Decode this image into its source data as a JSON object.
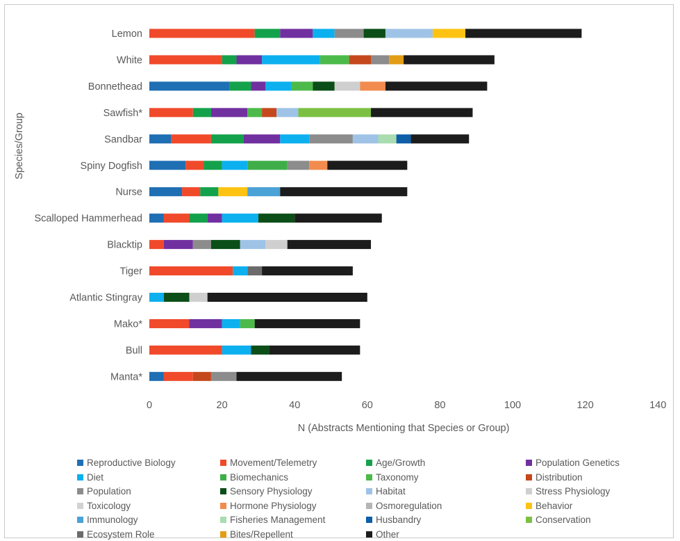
{
  "chart_data": {
    "type": "bar",
    "orientation": "horizontal",
    "stacked": true,
    "xlabel": "N (Abstracts Mentioning that Species or Group)",
    "ylabel": "Species/Group",
    "xlim": [
      0,
      140
    ],
    "xticks": [
      0,
      20,
      40,
      60,
      80,
      100,
      120,
      140
    ],
    "grid": false,
    "legend_position": "bottom",
    "categories": [
      "Lemon",
      "White",
      "Bonnethead",
      "Sawfish*",
      "Sandbar",
      "Spiny Dogfish",
      "Nurse",
      "Scalloped Hammerhead",
      "Blacktip",
      "Tiger",
      "Atlantic Stingray",
      "Mako*",
      "Bull",
      "Manta*"
    ],
    "series": [
      {
        "name": "Reproductive Biology",
        "color": "#1f6fb4",
        "values": [
          0,
          0,
          22,
          0,
          6,
          10,
          9,
          4,
          0,
          0,
          0,
          0,
          0,
          4
        ]
      },
      {
        "name": "Movement/Telemetry",
        "color": "#f04a2b",
        "values": [
          29,
          20,
          0,
          12,
          11,
          5,
          5,
          7,
          4,
          23,
          0,
          11,
          20,
          8
        ]
      },
      {
        "name": "Age/Growth",
        "color": "#13a24b",
        "values": [
          7,
          4,
          6,
          5,
          9,
          5,
          5,
          5,
          0,
          0,
          0,
          0,
          0,
          0
        ]
      },
      {
        "name": "Population Genetics",
        "color": "#7130a0",
        "values": [
          9,
          7,
          4,
          10,
          10,
          0,
          0,
          4,
          8,
          0,
          0,
          9,
          0,
          0
        ]
      },
      {
        "name": "Diet",
        "color": "#0cb0ef",
        "values": [
          6,
          16,
          7,
          0,
          8,
          7,
          0,
          10,
          0,
          4,
          4,
          5,
          8,
          0
        ]
      },
      {
        "name": "Biomechanics",
        "color": "#3fae49",
        "values": [
          0,
          0,
          0,
          0,
          0,
          11,
          0,
          0,
          0,
          0,
          0,
          0,
          0,
          0
        ]
      },
      {
        "name": "Taxonomy",
        "color": "#4cba4a",
        "values": [
          0,
          8,
          6,
          4,
          0,
          0,
          0,
          0,
          0,
          0,
          0,
          4,
          0,
          0
        ]
      },
      {
        "name": "Distribution",
        "color": "#c5481c",
        "values": [
          0,
          6,
          0,
          4,
          0,
          0,
          0,
          0,
          0,
          0,
          0,
          0,
          0,
          5
        ]
      },
      {
        "name": "Population",
        "color": "#8c8c8c",
        "values": [
          8,
          5,
          0,
          0,
          12,
          6,
          0,
          0,
          5,
          0,
          0,
          0,
          0,
          7
        ]
      },
      {
        "name": "Sensory Physiology",
        "color": "#0b4e17",
        "values": [
          6,
          0,
          6,
          0,
          0,
          0,
          0,
          10,
          8,
          0,
          7,
          0,
          5,
          0
        ]
      },
      {
        "name": "Habitat",
        "color": "#9fc3e6",
        "values": [
          13,
          0,
          0,
          6,
          7,
          0,
          0,
          0,
          7,
          0,
          0,
          0,
          0,
          0
        ]
      },
      {
        "name": "Stress Physiology",
        "color": "#cfcfcf",
        "values": [
          0,
          0,
          7,
          0,
          0,
          0,
          0,
          0,
          6,
          0,
          5,
          0,
          0,
          0
        ]
      },
      {
        "name": "Toxicology",
        "color": "#d2d2d2",
        "values": [
          0,
          0,
          0,
          0,
          0,
          0,
          0,
          0,
          0,
          0,
          0,
          0,
          0,
          0
        ]
      },
      {
        "name": "Hormone Physiology",
        "color": "#f28b4e",
        "values": [
          0,
          0,
          7,
          0,
          0,
          5,
          0,
          0,
          0,
          0,
          0,
          0,
          0,
          0
        ]
      },
      {
        "name": "Osmoregulation",
        "color": "#b5b5b5",
        "values": [
          0,
          0,
          0,
          0,
          0,
          0,
          0,
          0,
          0,
          0,
          0,
          0,
          0,
          0
        ]
      },
      {
        "name": "Behavior",
        "color": "#fec312",
        "values": [
          9,
          0,
          0,
          0,
          0,
          0,
          8,
          0,
          0,
          0,
          0,
          0,
          0,
          0
        ]
      },
      {
        "name": "Immunology",
        "color": "#4aa2d6",
        "values": [
          0,
          0,
          0,
          0,
          0,
          0,
          9,
          0,
          0,
          0,
          0,
          0,
          0,
          0
        ]
      },
      {
        "name": "Fisheries Management",
        "color": "#a9dcb0",
        "values": [
          0,
          0,
          0,
          0,
          5,
          0,
          0,
          0,
          0,
          0,
          0,
          0,
          0,
          0
        ]
      },
      {
        "name": "Husbandry",
        "color": "#0e5ea8",
        "values": [
          0,
          0,
          0,
          0,
          4,
          0,
          0,
          0,
          0,
          0,
          0,
          0,
          0,
          0
        ]
      },
      {
        "name": "Conservation",
        "color": "#7bc043",
        "values": [
          0,
          0,
          0,
          20,
          0,
          0,
          0,
          0,
          0,
          0,
          0,
          0,
          0,
          0
        ]
      },
      {
        "name": "Ecosystem Role",
        "color": "#6b6b6b",
        "values": [
          0,
          0,
          0,
          0,
          0,
          0,
          0,
          0,
          0,
          4,
          0,
          0,
          0,
          0
        ]
      },
      {
        "name": "Bites/Repellent",
        "color": "#e39d14",
        "values": [
          0,
          4,
          0,
          0,
          0,
          0,
          0,
          0,
          0,
          0,
          0,
          0,
          0,
          0
        ]
      },
      {
        "name": "Other",
        "color": "#1c1c1c",
        "values": [
          32,
          25,
          28,
          28,
          16,
          22,
          35,
          24,
          23,
          25,
          44,
          29,
          25,
          29
        ]
      }
    ]
  }
}
